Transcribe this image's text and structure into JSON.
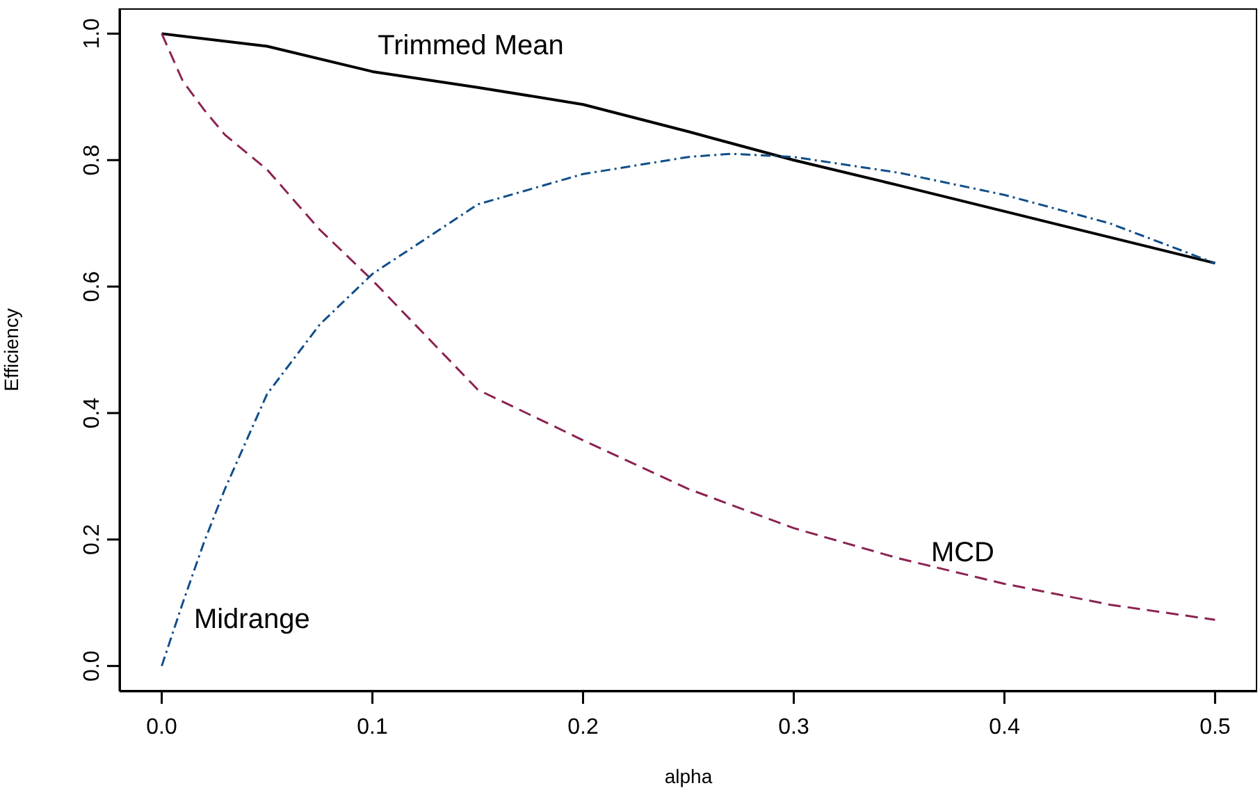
{
  "chart_data": {
    "type": "line",
    "xlabel": "alpha",
    "ylabel": "Efficiency",
    "xlim": [
      -0.02,
      0.52
    ],
    "ylim": [
      -0.04,
      1.04
    ],
    "xticks": [
      {
        "value": 0,
        "label": "0.0"
      },
      0.1,
      0.2,
      0.3,
      0.4,
      0.5
    ],
    "yticks": [
      {
        "value": 0,
        "label": "0.0"
      },
      0.2,
      0.4,
      0.6,
      0.8,
      {
        "value": 1,
        "label": "1.0"
      }
    ],
    "grid": false,
    "legend": false,
    "marker": "none",
    "series": [
      {
        "name": "Trimmed Mean",
        "color": "#000000",
        "line_style": "solid",
        "x": [
          0,
          0.05,
          0.1,
          0.15,
          0.2,
          0.25,
          0.3,
          0.35,
          0.4,
          0.45,
          0.5
        ],
        "values": [
          1,
          0.98,
          0.94,
          0.915,
          0.888,
          0.845,
          0.8,
          0.76,
          0.719,
          0.678,
          0.637
        ]
      },
      {
        "name": "MCD",
        "color": "#8b2252",
        "line_style": "dashed",
        "x": [
          0,
          0.01,
          0.02,
          0.03,
          0.05,
          0.075,
          0.1,
          0.15,
          0.2,
          0.25,
          0.3,
          0.35,
          0.4,
          0.45,
          0.5
        ],
        "values": [
          1,
          0.925,
          0.88,
          0.84,
          0.785,
          0.69,
          0.61,
          0.437,
          0.357,
          0.28,
          0.218,
          0.17,
          0.13,
          0.097,
          0.073
        ]
      },
      {
        "name": "Midrange",
        "color": "#104e8b",
        "line_style": "dotted",
        "x": [
          0,
          0.005,
          0.01,
          0.02,
          0.03,
          0.05,
          0.075,
          0.1,
          0.15,
          0.2,
          0.25,
          0.27,
          0.3,
          0.35,
          0.4,
          0.45,
          0.5
        ],
        "values": [
          0,
          0.05,
          0.1,
          0.195,
          0.28,
          0.43,
          0.54,
          0.62,
          0.73,
          0.778,
          0.805,
          0.81,
          0.805,
          0.78,
          0.745,
          0.7,
          0.637
        ]
      }
    ]
  }
}
